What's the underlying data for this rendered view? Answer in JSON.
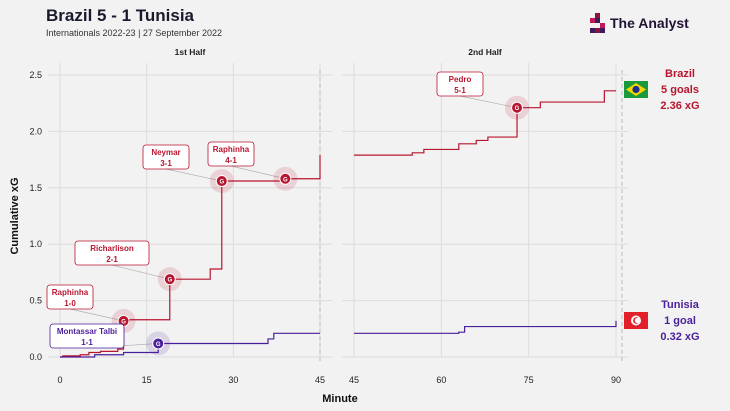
{
  "title": "Brazil 5 - 1 Tunisia",
  "subtitle": "Internationals 2022-23 | 27 September 2022",
  "brand": "The Analyst",
  "icons": {
    "brand_logo": "bar-blocks-logo",
    "brazil_flag": "brazil-flag-icon",
    "tunisia_flag": "tunisia-flag-icon"
  },
  "colors": {
    "brazil": "#b8152f",
    "tunisia": "#4a1f9a",
    "background": "#f2f2f2"
  },
  "chart_data": {
    "type": "line",
    "ylabel": "Cumulative xG",
    "xlabel": "Minute",
    "ylim": [
      0,
      2.5
    ],
    "yticks": [
      0.0,
      0.5,
      1.0,
      1.5,
      2.0,
      2.5
    ],
    "ytick_labels": [
      "0.0",
      "0.5",
      "1.0",
      "1.5",
      "2.0",
      "2.5"
    ],
    "halves": [
      {
        "label": "1st Half",
        "xlim": [
          0,
          45
        ],
        "xticks": [
          0,
          15,
          30,
          45
        ],
        "xtick_labels": [
          "0",
          "15",
          "30",
          "45"
        ]
      },
      {
        "label": "2nd Half",
        "xlim": [
          45,
          90
        ],
        "xticks": [
          45,
          60,
          75,
          90
        ],
        "xtick_labels": [
          "45",
          "60",
          "75",
          "90"
        ]
      }
    ],
    "series": [
      {
        "name": "Brazil",
        "goals_label": "5 goals",
        "xg_label": "2.36 xG",
        "points": [
          [
            0,
            0
          ],
          [
            0.5,
            0.01
          ],
          [
            3.5,
            0.02
          ],
          [
            5,
            0.04
          ],
          [
            7,
            0.05
          ],
          [
            10,
            0.07
          ],
          [
            11,
            0.32
          ],
          [
            12,
            0.33
          ],
          [
            19,
            0.69
          ],
          [
            26,
            0.78
          ],
          [
            28,
            1.56
          ],
          [
            39,
            1.58
          ],
          [
            45,
            1.79
          ],
          [
            45,
            1.79
          ],
          [
            55,
            1.81
          ],
          [
            57,
            1.84
          ],
          [
            63,
            1.89
          ],
          [
            66,
            1.92
          ],
          [
            68,
            1.95
          ],
          [
            73,
            2.21
          ],
          [
            77,
            2.26
          ],
          [
            88,
            2.36
          ],
          [
            90,
            2.36
          ]
        ],
        "goals": [
          {
            "minute": 11,
            "xg": 0.32,
            "player": "Raphinha",
            "score": "1-0"
          },
          {
            "minute": 19,
            "xg": 0.69,
            "player": "Richarlison",
            "score": "2-1"
          },
          {
            "minute": 28,
            "xg": 1.56,
            "player": "Neymar",
            "score": "3-1"
          },
          {
            "minute": 39,
            "xg": 1.58,
            "player": "Raphinha",
            "score": "4-1"
          },
          {
            "minute": 73,
            "xg": 2.21,
            "player": "Pedro",
            "score": "5-1"
          }
        ]
      },
      {
        "name": "Tunisia",
        "goals_label": "1 goal",
        "xg_label": "0.32 xG",
        "points": [
          [
            0,
            0
          ],
          [
            6,
            0.02
          ],
          [
            11,
            0.04
          ],
          [
            16,
            0.04
          ],
          [
            17,
            0.12
          ],
          [
            36,
            0.16
          ],
          [
            37,
            0.21
          ],
          [
            45,
            0.21
          ],
          [
            45,
            0.21
          ],
          [
            63,
            0.22
          ],
          [
            64,
            0.27
          ],
          [
            90,
            0.32
          ]
        ],
        "goals": [
          {
            "minute": 17,
            "xg": 0.12,
            "player": "Montassar Talbi",
            "score": "1-1"
          }
        ]
      }
    ],
    "goal_marker_label": "G"
  }
}
